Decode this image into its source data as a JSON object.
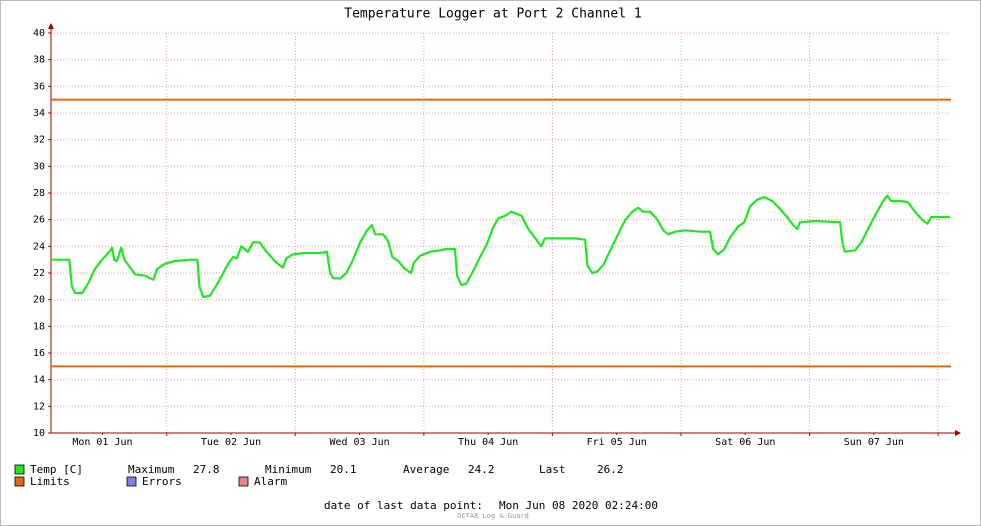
{
  "chart_data": {
    "type": "line",
    "title": "Temperature Logger at Port 2 Channel 1",
    "xlim": [
      2.4,
      170.4
    ],
    "xticks": [
      {
        "value": 12,
        "label": "Mon 01 Jun"
      },
      {
        "value": 36,
        "label": "Tue 02 Jun"
      },
      {
        "value": 60,
        "label": "Wed 03 Jun"
      },
      {
        "value": 84,
        "label": "Thu 04 Jun"
      },
      {
        "value": 108,
        "label": "Fri 05 Jun"
      },
      {
        "value": 132,
        "label": "Sat 06 Jun"
      },
      {
        "value": 156,
        "label": "Sun 07 Jun"
      }
    ],
    "x_grid": [
      24,
      48,
      72,
      96,
      120,
      144,
      168
    ],
    "ylim": [
      10,
      40
    ],
    "yticks": [
      10,
      12,
      14,
      16,
      18,
      20,
      22,
      24,
      26,
      28,
      30,
      32,
      34,
      36,
      38,
      40
    ],
    "grid": true,
    "x": [
      2.4,
      5.8,
      6.3,
      6.9,
      8.2,
      9.3,
      10.6,
      11.9,
      13.1,
      13.8,
      14.2,
      14.7,
      15.5,
      16.1,
      17.2,
      18.1,
      20.0,
      20.9,
      21.5,
      22.2,
      23.7,
      25.6,
      28.4,
      29.7,
      30.1,
      30.8,
      32.1,
      33.6,
      35.5,
      36.4,
      37.1,
      37.9,
      39.2,
      40.1,
      41.3,
      42.6,
      44.4,
      45.7,
      46.3,
      47.6,
      49.8,
      52.6,
      53.9,
      54.5,
      55.1,
      56.4,
      57.5,
      58.8,
      60.1,
      61.4,
      62.3,
      62.9,
      64.4,
      65.3,
      66.1,
      67.2,
      68.5,
      69.6,
      70.2,
      71.3,
      73.2,
      75.0,
      76.3,
      77.8,
      78.2,
      79.0,
      79.9,
      81.0,
      82.5,
      83.8,
      84.9,
      85.9,
      87.2,
      88.3,
      90.2,
      91.5,
      92.8,
      93.9,
      94.6,
      97.4,
      100.2,
      102.1,
      102.5,
      103.4,
      104.3,
      105.5,
      106.8,
      108.1,
      109.6,
      110.9,
      112.0,
      112.9,
      114.2,
      115.4,
      116.7,
      117.6,
      118.9,
      120.8,
      123.6,
      125.4,
      126.0,
      126.9,
      128.1,
      129.2,
      130.7,
      131.8,
      132.9,
      134.2,
      135.5,
      137.0,
      138.5,
      139.8,
      140.9,
      141.7,
      142.2,
      145.0,
      149.7,
      150.1,
      150.6,
      152.5,
      153.8,
      154.9,
      156.2,
      157.6,
      158.5,
      159.2,
      160.9,
      162.4,
      163.1,
      164.1,
      165.0,
      166.0,
      166.7,
      168.4,
      170.2
    ],
    "series": [
      {
        "name": "Temp [C]",
        "color": "#22e622",
        "values": [
          23.0,
          23.0,
          21.0,
          20.5,
          20.5,
          21.2,
          22.3,
          23.0,
          23.5,
          23.9,
          23.0,
          22.9,
          23.9,
          23.0,
          22.4,
          21.9,
          21.8,
          21.6,
          21.5,
          22.3,
          22.7,
          22.9,
          23.0,
          23.0,
          21.0,
          20.2,
          20.3,
          21.3,
          22.7,
          23.2,
          23.1,
          24.0,
          23.6,
          24.3,
          24.3,
          23.6,
          22.8,
          22.4,
          23.1,
          23.4,
          23.5,
          23.5,
          23.6,
          22.0,
          21.6,
          21.6,
          22.0,
          23.0,
          24.3,
          25.2,
          25.6,
          24.9,
          24.9,
          24.4,
          23.2,
          22.9,
          22.3,
          22.0,
          22.8,
          23.3,
          23.6,
          23.7,
          23.8,
          23.8,
          21.8,
          21.1,
          21.2,
          22.0,
          23.2,
          24.2,
          25.4,
          26.1,
          26.3,
          26.6,
          26.3,
          25.3,
          24.6,
          24.0,
          24.6,
          24.6,
          24.6,
          24.5,
          22.6,
          22.0,
          22.1,
          22.6,
          23.7,
          24.8,
          26.0,
          26.6,
          26.9,
          26.6,
          26.6,
          26.1,
          25.2,
          24.9,
          25.1,
          25.2,
          25.1,
          25.1,
          23.8,
          23.4,
          23.8,
          24.7,
          25.5,
          25.8,
          27.0,
          27.5,
          27.7,
          27.4,
          26.8,
          26.2,
          25.6,
          25.3,
          25.8,
          25.9,
          25.8,
          24.3,
          23.6,
          23.7,
          24.4,
          25.3,
          26.3,
          27.3,
          27.8,
          27.4,
          27.4,
          27.3,
          26.9,
          26.4,
          26.0,
          25.7,
          26.2,
          26.2,
          26.2
        ]
      }
    ],
    "limits": {
      "name": "Limits",
      "color": "#e06a10",
      "values": [
        35,
        15
      ]
    },
    "legend_extra": [
      {
        "name": "Errors",
        "color": "#7f7ff0"
      },
      {
        "name": "Alarm",
        "color": "#f08080"
      }
    ],
    "stats": [
      {
        "label": "Maximum",
        "value": 27.8
      },
      {
        "label": "Minimum",
        "value": 20.1
      },
      {
        "label": "Average",
        "value": 24.2
      },
      {
        "label": "Last",
        "value": 26.2
      }
    ],
    "footer": {
      "label": "date of last data point:",
      "value": "Mon Jun 08 2020 02:24:00"
    },
    "watermark": "OCTA8 Log & Guard"
  }
}
